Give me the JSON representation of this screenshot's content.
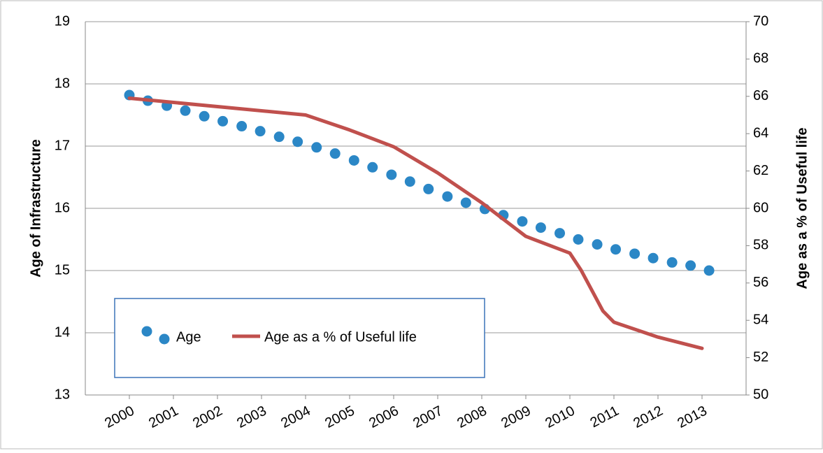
{
  "chart_data": {
    "type": "combo",
    "y_label": "Age of Infrastructure",
    "y2_label": "Age as a % of Useful life",
    "xlim": [
      1999,
      2014
    ],
    "xticks": [
      2000,
      2001,
      2002,
      2003,
      2004,
      2005,
      2006,
      2007,
      2008,
      2009,
      2010,
      2011,
      2012,
      2013
    ],
    "ylim": [
      13,
      19
    ],
    "yticks": [
      13,
      14,
      15,
      16,
      17,
      18,
      19
    ],
    "y2lim": [
      50,
      70
    ],
    "y2ticks": [
      50,
      52,
      54,
      56,
      58,
      60,
      62,
      64,
      66,
      68,
      70
    ],
    "grid": true,
    "series": [
      {
        "name": "Age",
        "type": "scatter",
        "color": "#2b87c6",
        "x": [
          2000,
          2000.42,
          2000.85,
          2001.27,
          2001.7,
          2002.12,
          2002.55,
          2002.97,
          2003.4,
          2003.82,
          2004.25,
          2004.67,
          2005.1,
          2005.52,
          2005.95,
          2006.37,
          2006.79,
          2007.22,
          2007.64,
          2008.07,
          2008.49,
          2008.92,
          2009.34,
          2009.77,
          2010.19,
          2010.62,
          2011.04,
          2011.47,
          2011.89,
          2012.32,
          2012.74,
          2013.16
        ],
        "values": [
          17.82,
          17.73,
          17.65,
          17.57,
          17.48,
          17.4,
          17.32,
          17.24,
          17.15,
          17.07,
          16.98,
          16.88,
          16.77,
          16.66,
          16.54,
          16.43,
          16.31,
          16.19,
          16.09,
          15.99,
          15.89,
          15.79,
          15.69,
          15.6,
          15.5,
          15.42,
          15.34,
          15.27,
          15.2,
          15.13,
          15.08,
          15.0
        ]
      },
      {
        "name": "Age as a % of Useful life",
        "type": "line",
        "color": "#c0504d",
        "axis": "y2",
        "x": [
          2000,
          2004,
          2005,
          2006,
          2007,
          2008,
          2009,
          2010,
          2010.25,
          2010.75,
          2011,
          2012,
          2013
        ],
        "values": [
          65.9,
          65.0,
          64.2,
          63.3,
          61.9,
          60.3,
          58.5,
          57.6,
          56.7,
          54.5,
          53.9,
          53.1,
          52.5
        ]
      }
    ]
  }
}
